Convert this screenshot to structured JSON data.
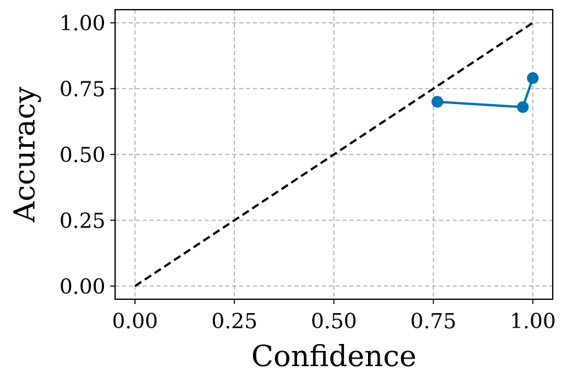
{
  "chart_data": {
    "type": "line",
    "title": "",
    "xlabel": "Confidence",
    "ylabel": "Accuracy",
    "xlim": [
      -0.05,
      1.05
    ],
    "ylim": [
      -0.05,
      1.05
    ],
    "xticks": [
      0.0,
      0.25,
      0.5,
      0.75,
      1.0
    ],
    "yticks": [
      0.0,
      0.25,
      0.5,
      0.75,
      1.0
    ],
    "xtick_labels": [
      "0.00",
      "0.25",
      "0.50",
      "0.75",
      "1.00"
    ],
    "ytick_labels": [
      "0.00",
      "0.25",
      "0.50",
      "0.75",
      "1.00"
    ],
    "grid": true,
    "series": [
      {
        "x": [
          0.0,
          1.0
        ],
        "y": [
          0.0,
          1.0
        ],
        "color": "#000000",
        "style": "dashed",
        "markers": false
      },
      {
        "x": [
          0.76,
          0.975,
          1.0
        ],
        "y": [
          0.7,
          0.68,
          0.79
        ],
        "color": "#0173b2",
        "style": "solid",
        "markers": true
      }
    ]
  }
}
